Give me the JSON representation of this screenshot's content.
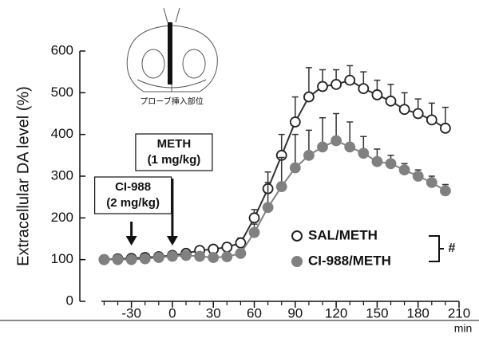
{
  "chart_data": {
    "type": "line",
    "y_label": "Extracellular DA level (%)",
    "x_unit": "min",
    "inset_label": "プローブ挿入部位",
    "x": [
      -50,
      -40,
      -30,
      -20,
      -10,
      0,
      10,
      20,
      30,
      40,
      50,
      60,
      70,
      80,
      90,
      100,
      110,
      120,
      130,
      140,
      150,
      160,
      170,
      180,
      190,
      200
    ],
    "series": [
      {
        "name": "SAL/METH",
        "marker": "open",
        "color": "#333333",
        "values": [
          100,
          102,
          103,
          105,
          107,
          110,
          115,
          122,
          125,
          130,
          140,
          200,
          270,
          350,
          430,
          490,
          515,
          520,
          530,
          510,
          495,
          480,
          460,
          450,
          435,
          415
        ],
        "errors": [
          5,
          5,
          5,
          5,
          5,
          5,
          6,
          8,
          8,
          10,
          12,
          20,
          40,
          50,
          60,
          70,
          40,
          35,
          35,
          40,
          35,
          40,
          40,
          35,
          40,
          50
        ]
      },
      {
        "name": "CI-988/METH",
        "marker": "filled",
        "color": "#808080",
        "values": [
          100,
          100,
          100,
          102,
          105,
          108,
          110,
          108,
          105,
          107,
          115,
          165,
          225,
          275,
          320,
          350,
          370,
          385,
          370,
          355,
          335,
          330,
          315,
          300,
          285,
          265
        ],
        "errors": [
          5,
          5,
          5,
          5,
          5,
          5,
          5,
          5,
          5,
          5,
          8,
          20,
          60,
          70,
          80,
          60,
          70,
          65,
          60,
          40,
          30,
          20,
          15,
          15,
          15,
          15
        ]
      }
    ],
    "xlim": [
      -52,
      210
    ],
    "xticks": [
      -30,
      0,
      30,
      60,
      90,
      120,
      150,
      180,
      210
    ],
    "xminorticks": [
      -50,
      -40,
      -20,
      -10,
      10,
      20,
      40,
      50,
      70,
      80,
      100,
      110,
      130,
      140,
      160,
      170,
      190,
      200
    ],
    "ylim": [
      0,
      600
    ],
    "yticks": [
      0,
      100,
      200,
      300,
      400,
      500,
      600
    ],
    "annotations": [
      {
        "lines": [
          "CI-988",
          "(2 mg/kg)"
        ],
        "x": -30
      },
      {
        "lines": [
          "METH",
          "(1 mg/kg)"
        ],
        "x": 0
      }
    ],
    "significance": "#"
  }
}
